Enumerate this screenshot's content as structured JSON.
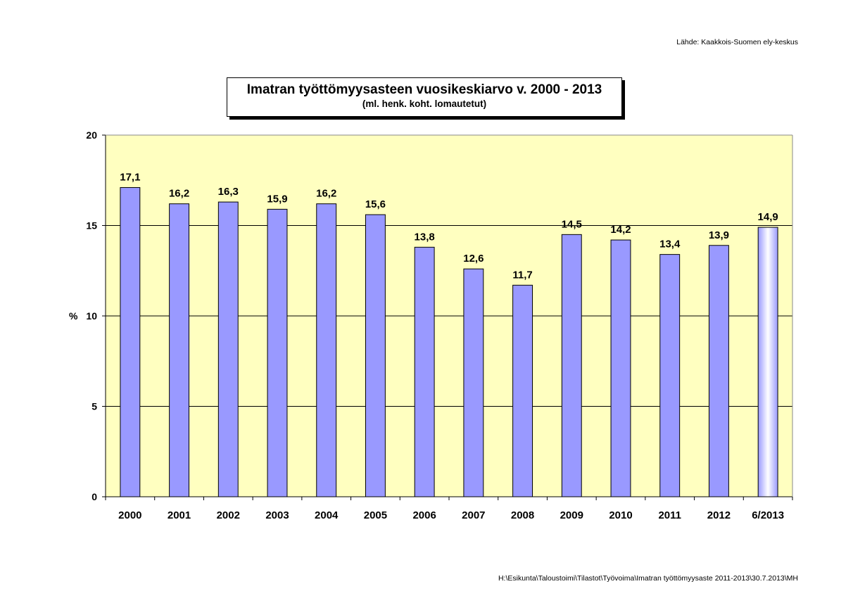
{
  "source_note": "Lähde: Kaakkois-Suomen ely-keskus",
  "footer_path": "H:\\Esikunta\\Taloustoimi\\Tilastot\\Työvoima\\Imatran työttömyysaste 2011-2013\\30.7.2013\\MH",
  "chart_data": {
    "type": "bar",
    "title": "Imatran työttömyysasteen vuosikeskiarvo v. 2000 - 2013",
    "subtitle": "(ml. henk. koht. lomautetut)",
    "xlabel": "",
    "ylabel": "%",
    "ylim": [
      0,
      20
    ],
    "yticks": [
      0,
      5,
      10,
      15,
      20
    ],
    "grid": true,
    "categories": [
      "2000",
      "2001",
      "2002",
      "2003",
      "2004",
      "2005",
      "2006",
      "2007",
      "2008",
      "2009",
      "2010",
      "2011",
      "2012",
      "6/2013"
    ],
    "values": [
      17.1,
      16.2,
      16.3,
      15.9,
      16.2,
      15.6,
      13.8,
      12.6,
      11.7,
      14.5,
      14.2,
      13.4,
      13.9,
      14.9
    ],
    "value_labels": [
      "17,1",
      "16,2",
      "16,3",
      "15,9",
      "16,2",
      "15,6",
      "13,8",
      "12,6",
      "11,7",
      "14,5",
      "14,2",
      "13,4",
      "13,9",
      "14,9"
    ],
    "highlight_last": true,
    "colors": {
      "plot_background": "#ffffc0",
      "bar": "#9999ff",
      "bar_highlight": "#9999ff",
      "gridline": "#000000"
    }
  }
}
